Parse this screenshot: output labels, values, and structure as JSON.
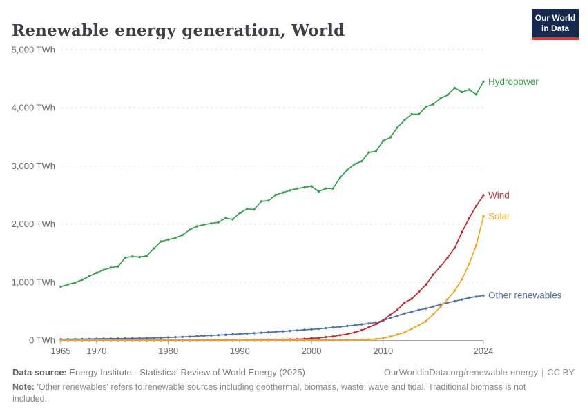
{
  "header": {
    "title": "Renewable energy generation, World",
    "logo": {
      "line1": "Our World",
      "line2": "in Data"
    }
  },
  "footer": {
    "datasource_label": "Data source:",
    "datasource_text": "Energy Institute - Statistical Review of World Energy (2025)",
    "url_text": "OurWorldinData.org/renewable-energy",
    "separator": "|",
    "license": "CC BY",
    "note_label": "Note:",
    "note_text": "'Other renewables' refers to renewable sources including geothermal, biomass, waste, wave and tidal. Traditional biomass is not included."
  },
  "chart_data": {
    "type": "line",
    "title": "Renewable energy generation, World",
    "unit": "TWh",
    "ylim": [
      0,
      5000
    ],
    "grid": "horizontal-dashed",
    "legend_position": "line-end-labels",
    "y_ticks": [
      {
        "value": 0,
        "label": "0 TWh"
      },
      {
        "value": 1000,
        "label": "1,000 TWh"
      },
      {
        "value": 2000,
        "label": "2,000 TWh"
      },
      {
        "value": 3000,
        "label": "3,000 TWh"
      },
      {
        "value": 4000,
        "label": "4,000 TWh"
      },
      {
        "value": 5000,
        "label": "5,000 TWh"
      }
    ],
    "x_tick_years": [
      1965,
      1970,
      1980,
      1990,
      2000,
      2010,
      2024
    ],
    "x": [
      1965,
      1966,
      1967,
      1968,
      1969,
      1970,
      1971,
      1972,
      1973,
      1974,
      1975,
      1976,
      1977,
      1978,
      1979,
      1980,
      1981,
      1982,
      1983,
      1984,
      1985,
      1986,
      1987,
      1988,
      1989,
      1990,
      1991,
      1992,
      1993,
      1994,
      1995,
      1996,
      1997,
      1998,
      1999,
      2000,
      2001,
      2002,
      2003,
      2004,
      2005,
      2006,
      2007,
      2008,
      2009,
      2010,
      2011,
      2012,
      2013,
      2014,
      2015,
      2016,
      2017,
      2018,
      2019,
      2020,
      2021,
      2022,
      2023,
      2024
    ],
    "series": [
      {
        "name": "Hydropower",
        "color": "#31a24c",
        "values": [
          920,
          960,
          990,
          1040,
          1100,
          1160,
          1210,
          1250,
          1270,
          1420,
          1440,
          1430,
          1450,
          1580,
          1700,
          1730,
          1760,
          1810,
          1900,
          1960,
          1990,
          2010,
          2030,
          2100,
          2080,
          2190,
          2260,
          2250,
          2390,
          2400,
          2500,
          2540,
          2580,
          2610,
          2630,
          2650,
          2560,
          2610,
          2610,
          2800,
          2930,
          3030,
          3080,
          3230,
          3250,
          3430,
          3490,
          3660,
          3790,
          3890,
          3890,
          4020,
          4060,
          4160,
          4220,
          4340,
          4270,
          4310,
          4230,
          4450
        ]
      },
      {
        "name": "Other renewables",
        "color": "#4c6fb1",
        "values": [
          15,
          16,
          17,
          18,
          20,
          22,
          24,
          25,
          27,
          28,
          30,
          32,
          35,
          38,
          42,
          46,
          51,
          56,
          61,
          68,
          75,
          81,
          87,
          93,
          100,
          107,
          114,
          121,
          128,
          136,
          144,
          152,
          160,
          169,
          178,
          187,
          196,
          207,
          218,
          230,
          243,
          257,
          272,
          288,
          305,
          340,
          380,
          420,
          460,
          490,
          520,
          545,
          580,
          615,
          645,
          670,
          700,
          730,
          750,
          770
        ]
      },
      {
        "name": "Wind",
        "color": "#c5292f",
        "values": [
          0,
          0,
          0,
          0,
          0,
          0,
          0,
          0,
          0,
          0,
          0,
          0,
          0,
          0,
          0,
          0,
          0,
          0,
          0,
          0,
          1,
          1,
          2,
          2,
          3,
          4,
          5,
          6,
          7,
          8,
          8,
          9,
          12,
          16,
          21,
          31,
          38,
          52,
          63,
          85,
          104,
          133,
          171,
          221,
          276,
          342,
          437,
          524,
          646,
          712,
          831,
          960,
          1130,
          1270,
          1420,
          1590,
          1860,
          2100,
          2310,
          2494
        ]
      },
      {
        "name": "Solar",
        "color": "#f5a31a",
        "values": [
          0,
          0,
          0,
          0,
          0,
          0,
          0,
          0,
          0,
          0,
          0,
          0,
          0,
          0,
          0,
          0,
          0,
          0,
          0,
          0,
          0,
          0,
          0,
          0,
          0,
          0,
          0,
          0,
          0,
          0,
          0,
          0,
          0,
          0,
          1,
          1,
          1,
          2,
          2,
          3,
          4,
          5,
          7,
          11,
          19,
          32,
          63,
          97,
          132,
          197,
          256,
          328,
          445,
          574,
          704,
          853,
          1048,
          1310,
          1631,
          2131
        ]
      }
    ]
  }
}
